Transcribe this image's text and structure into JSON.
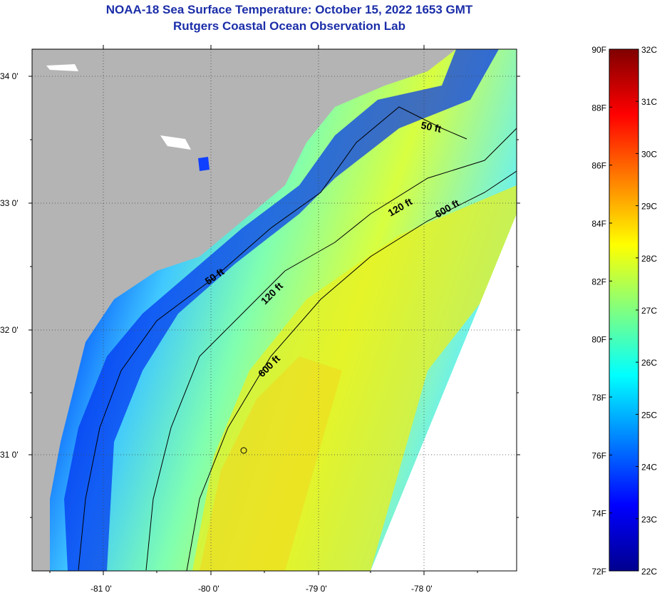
{
  "title": {
    "line1": "NOAA-18 Sea Surface Temperature:  October 15, 2022 1653 GMT",
    "line2": "Rutgers Coastal Ocean Observation Lab"
  },
  "map": {
    "lon_ticks": [
      {
        "value": -81,
        "label": "-81 0'"
      },
      {
        "value": -80,
        "label": "-80 0'"
      },
      {
        "value": -79,
        "label": "-79 0'"
      },
      {
        "value": -78,
        "label": "-78 0'"
      }
    ],
    "lat_ticks": [
      {
        "value": 34,
        "label": "34 0'"
      },
      {
        "value": 33,
        "label": "33 0'"
      },
      {
        "value": 32,
        "label": "32 0'"
      },
      {
        "value": 31,
        "label": "31 0'"
      }
    ],
    "contour_labels": [
      {
        "id": "c50a",
        "text": "50 ft"
      },
      {
        "id": "c50b",
        "text": "50 ft"
      },
      {
        "id": "c120a",
        "text": "120 ft"
      },
      {
        "id": "c120b",
        "text": "120 ft"
      },
      {
        "id": "c600a",
        "text": "600 ft"
      },
      {
        "id": "c600b",
        "text": "600 ft"
      }
    ],
    "colors": {
      "land": "#b4b4b4",
      "nodata": "#ffffff"
    }
  },
  "colorbar": {
    "fahrenheit": [
      "90F",
      "88F",
      "86F",
      "84F",
      "82F",
      "80F",
      "78F",
      "76F",
      "74F",
      "72F"
    ],
    "celsius": [
      "32C",
      "31C",
      "30C",
      "29C",
      "28C",
      "27C",
      "26C",
      "25C",
      "24C",
      "23C",
      "22C"
    ],
    "range_c": [
      22,
      32
    ],
    "stops": [
      "#00008f",
      "#0000ff",
      "#0080ff",
      "#00ffff",
      "#80ff80",
      "#ffff00",
      "#ff8000",
      "#ff0000",
      "#800000"
    ]
  }
}
